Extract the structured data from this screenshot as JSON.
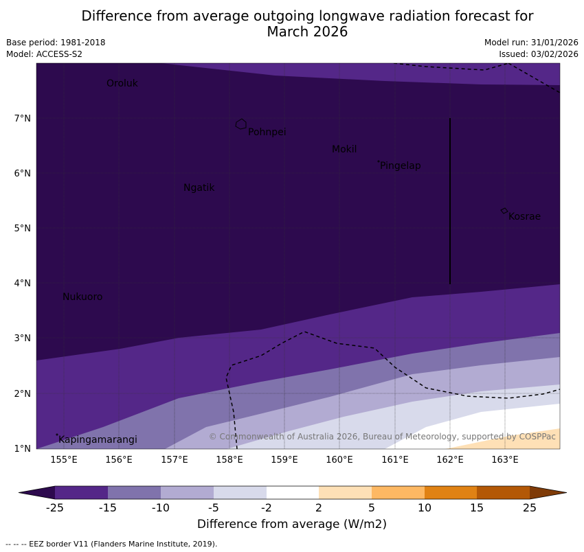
{
  "title_line1": "Difference from average outgoing longwave radiation forecast for",
  "title_line2": "March 2026",
  "base_period": "Base period: 1981-2018",
  "model": "Model: ACCESS-S2",
  "model_run": "Model run: 31/01/2026",
  "issued": "Issued: 03/02/2026",
  "copyright": "© Commonwealth of Australia 2026, Bureau of Meteorology, supported by COSPPac",
  "map": {
    "lon_labels": [
      "155°E",
      "156°E",
      "157°E",
      "158°E",
      "159°E",
      "160°E",
      "161°E",
      "162°E",
      "163°E"
    ],
    "lat_labels": [
      "1°N",
      "2°N",
      "3°N",
      "4°N",
      "5°N",
      "6°N",
      "7°N"
    ],
    "places": [
      {
        "name": "Oroluk"
      },
      {
        "name": "Pohnpei"
      },
      {
        "name": "Mokil"
      },
      {
        "name": "Pingelap"
      },
      {
        "name": "Ngatik"
      },
      {
        "name": "Kosrae"
      },
      {
        "name": "Nukuoro"
      },
      {
        "name": "Kapingamarangi"
      }
    ]
  },
  "colorbar": {
    "title": "Difference from average (W/m2)",
    "ticks": [
      "-25",
      "-15",
      "-10",
      "-5",
      "-2",
      "2",
      "5",
      "10",
      "15",
      "25"
    ],
    "colors": {
      "below_min": "#2d0a4e",
      "b1": "#542788",
      "b2": "#8073ac",
      "b3": "#b2abd2",
      "b4": "#d8daeb",
      "b5": "#ffffff",
      "b6": "#fee0b6",
      "b7": "#fdb863",
      "b8": "#e08214",
      "b9": "#b35806",
      "above_max": "#7f3b08"
    }
  },
  "footnote": "-- -- -- EEZ border V11 (Flanders Marine Institute, 2019)."
}
